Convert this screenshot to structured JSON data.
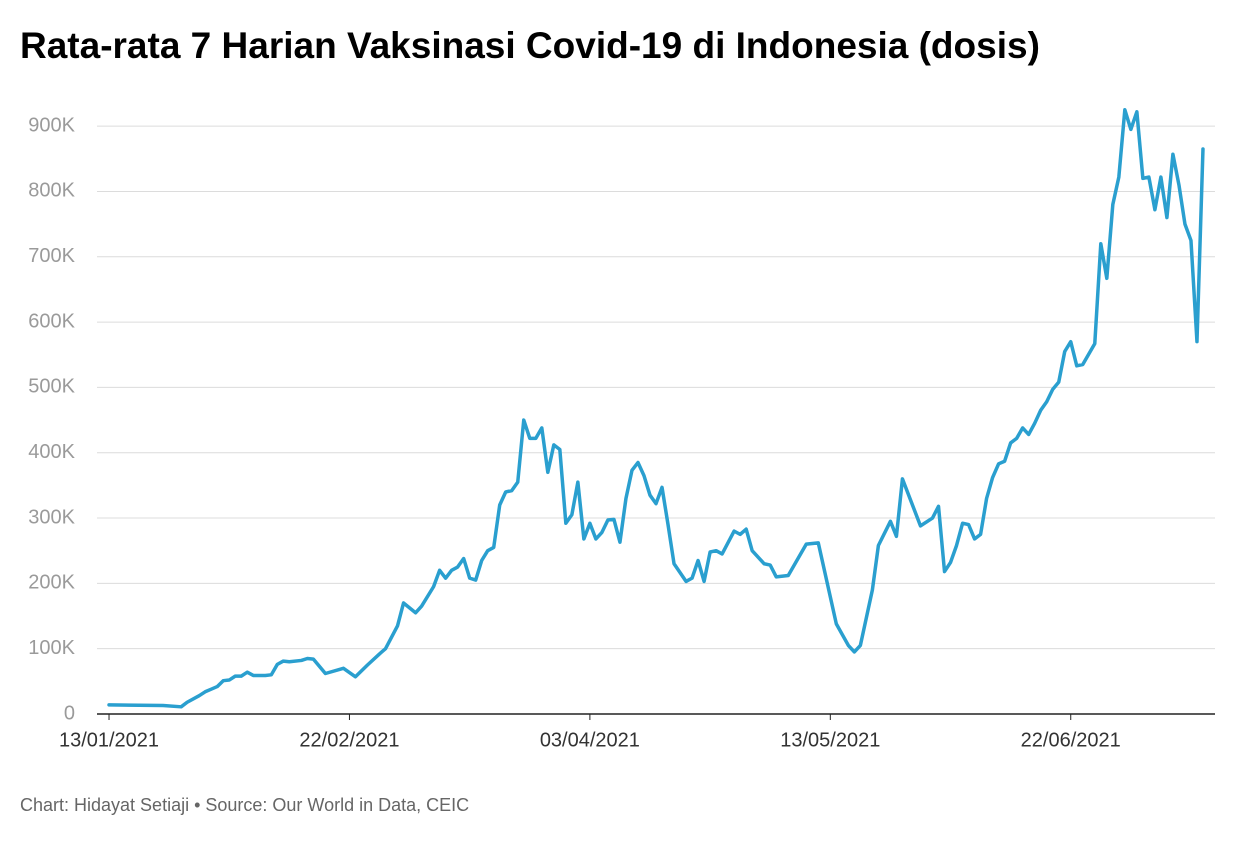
{
  "chart_data": {
    "type": "line",
    "title": "Rata-rata 7 Harian Vaksinasi Covid-19 di Indonesia (dosis)",
    "source": "Chart: Hidayat Setiaji • Source: Our World in Data, CEIC",
    "x": [
      "13/01/2021",
      "22/01/2021",
      "25/01/2021",
      "26/01/2021",
      "28/01/2021",
      "29/01/2021",
      "30/01/2021",
      "31/01/2021",
      "01/02/2021",
      "02/02/2021",
      "03/02/2021",
      "04/02/2021",
      "05/02/2021",
      "06/02/2021",
      "08/02/2021",
      "09/02/2021",
      "10/02/2021",
      "11/02/2021",
      "12/02/2021",
      "14/02/2021",
      "15/02/2021",
      "16/02/2021",
      "18/02/2021",
      "21/02/2021",
      "23/02/2021",
      "25/02/2021",
      "27/02/2021",
      "28/02/2021",
      "02/03/2021",
      "03/03/2021",
      "05/03/2021",
      "06/03/2021",
      "08/03/2021",
      "09/03/2021",
      "10/03/2021",
      "11/03/2021",
      "12/03/2021",
      "13/03/2021",
      "14/03/2021",
      "15/03/2021",
      "16/03/2021",
      "17/03/2021",
      "18/03/2021",
      "19/03/2021",
      "20/03/2021",
      "21/03/2021",
      "22/03/2021",
      "23/03/2021",
      "24/03/2021",
      "25/03/2021",
      "26/03/2021",
      "27/03/2021",
      "28/03/2021",
      "29/03/2021",
      "30/03/2021",
      "31/03/2021",
      "01/04/2021",
      "02/04/2021",
      "03/04/2021",
      "04/04/2021",
      "05/04/2021",
      "06/04/2021",
      "07/04/2021",
      "08/04/2021",
      "09/04/2021",
      "10/04/2021",
      "11/04/2021",
      "12/04/2021",
      "13/04/2021",
      "14/04/2021",
      "15/04/2021",
      "16/04/2021",
      "17/04/2021",
      "19/04/2021",
      "20/04/2021",
      "21/04/2021",
      "22/04/2021",
      "23/04/2021",
      "24/04/2021",
      "25/04/2021",
      "27/04/2021",
      "28/04/2021",
      "29/04/2021",
      "30/04/2021",
      "02/05/2021",
      "03/05/2021",
      "04/05/2021",
      "06/05/2021",
      "09/05/2021",
      "11/05/2021",
      "14/05/2021",
      "16/05/2021",
      "17/05/2021",
      "18/05/2021",
      "20/05/2021",
      "21/05/2021",
      "23/05/2021",
      "24/05/2021",
      "25/05/2021",
      "28/05/2021",
      "30/05/2021",
      "31/05/2021",
      "01/06/2021",
      "02/06/2021",
      "03/06/2021",
      "04/06/2021",
      "05/06/2021",
      "06/06/2021",
      "07/06/2021",
      "08/06/2021",
      "09/06/2021",
      "10/06/2021",
      "11/06/2021",
      "12/06/2021",
      "13/06/2021",
      "14/06/2021",
      "15/06/2021",
      "16/06/2021",
      "17/06/2021",
      "18/06/2021",
      "19/06/2021",
      "20/06/2021",
      "21/06/2021",
      "22/06/2021",
      "23/06/2021",
      "24/06/2021",
      "26/06/2021",
      "27/06/2021",
      "28/06/2021",
      "29/06/2021",
      "30/06/2021",
      "01/07/2021",
      "02/07/2021",
      "03/07/2021",
      "04/07/2021",
      "05/07/2021",
      "06/07/2021",
      "07/07/2021",
      "08/07/2021",
      "09/07/2021",
      "10/07/2021",
      "11/07/2021",
      "12/07/2021",
      "13/07/2021",
      "14/07/2021"
    ],
    "values": [
      14000,
      13000,
      11000,
      18000,
      28000,
      34000,
      38000,
      42000,
      51000,
      52000,
      58000,
      58000,
      64000,
      59000,
      59000,
      60000,
      76000,
      81000,
      80000,
      82000,
      85000,
      84000,
      62000,
      70000,
      57000,
      75000,
      92000,
      100000,
      135000,
      170000,
      155000,
      165000,
      195000,
      220000,
      208000,
      220000,
      225000,
      238000,
      208000,
      205000,
      235000,
      250000,
      255000,
      320000,
      340000,
      342000,
      355000,
      450000,
      422000,
      422000,
      438000,
      370000,
      412000,
      405000,
      292000,
      305000,
      355000,
      268000,
      292000,
      268000,
      278000,
      297000,
      298000,
      263000,
      330000,
      373000,
      385000,
      365000,
      335000,
      322000,
      347000,
      290000,
      230000,
      203000,
      208000,
      235000,
      203000,
      248000,
      250000,
      245000,
      280000,
      275000,
      283000,
      250000,
      230000,
      228000,
      210000,
      212000,
      260000,
      262000,
      138000,
      105000,
      95000,
      105000,
      190000,
      258000,
      295000,
      272000,
      360000,
      288000,
      300000,
      318000,
      218000,
      232000,
      258000,
      292000,
      290000,
      268000,
      275000,
      330000,
      362000,
      383000,
      387000,
      415000,
      422000,
      438000,
      428000,
      445000,
      465000,
      478000,
      497000,
      508000,
      555000,
      570000,
      533000,
      535000,
      567000,
      720000,
      667000,
      780000,
      822000,
      925000,
      895000,
      922000,
      820000,
      822000,
      772000,
      822000,
      760000,
      857000,
      810000,
      750000,
      725000,
      570000,
      865000
    ],
    "color": "#2a9fcf",
    "xlim": [
      "11/01/2021",
      "16/07/2021"
    ],
    "xticks": [
      "13/01/2021",
      "22/02/2021",
      "03/04/2021",
      "13/05/2021",
      "22/06/2021"
    ],
    "ylim": [
      0,
      940000
    ],
    "yticks": [
      0,
      {
        "value": 100000,
        "label": "100K"
      },
      {
        "value": 200000,
        "label": "200K"
      },
      {
        "value": 300000,
        "label": "300K"
      },
      {
        "value": 400000,
        "label": "400K"
      },
      {
        "value": 500000,
        "label": "500K"
      },
      {
        "value": 600000,
        "label": "600K"
      },
      {
        "value": 700000,
        "label": "700K"
      },
      {
        "value": 800000,
        "label": "800K"
      },
      {
        "value": 900000,
        "label": "900K"
      }
    ],
    "grid": true
  }
}
